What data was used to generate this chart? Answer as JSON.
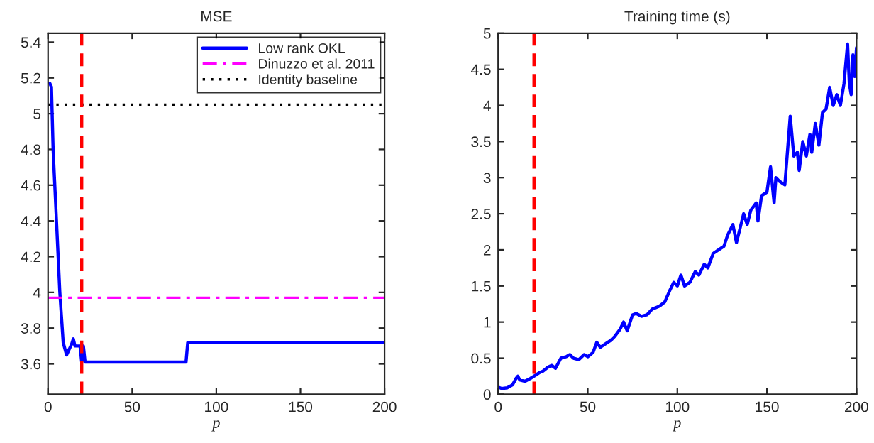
{
  "chart_data": [
    {
      "type": "line",
      "title": "MSE",
      "xlabel": "p",
      "xlim": [
        0,
        200
      ],
      "xticks": [
        0,
        50,
        100,
        150,
        200
      ],
      "ylim": [
        3.43,
        5.45
      ],
      "yticks": [
        3.6,
        3.8,
        4,
        4.2,
        4.4,
        4.6,
        4.8,
        5,
        5.2,
        5.4
      ],
      "grid": false,
      "legend": "top right",
      "marker": "none",
      "series": [
        {
          "name": "Low rank OKL",
          "color": "#0000ff",
          "line_style": "solid",
          "x": [
            1,
            2,
            3,
            5,
            7,
            9,
            11,
            13,
            14,
            15,
            16,
            19,
            20,
            21,
            22,
            82,
            83,
            200
          ],
          "values": [
            5.17,
            5.15,
            4.8,
            4.4,
            4.0,
            3.72,
            3.65,
            3.69,
            3.71,
            3.74,
            3.7,
            3.7,
            3.61,
            3.7,
            3.61,
            3.61,
            3.72,
            3.72
          ]
        },
        {
          "name": "Dinuzzo et al. 2011",
          "color": "#ff00ff",
          "line_style": "dashdot",
          "x": [
            0,
            200
          ],
          "values": [
            3.97,
            3.97
          ]
        },
        {
          "name": "Identity baseline",
          "color": "#000000",
          "line_style": "dotted",
          "x": [
            0,
            200
          ],
          "values": [
            5.05,
            5.05
          ]
        }
      ],
      "ref_lines": [
        {
          "axis": "x",
          "value": 20,
          "color": "#ff0000",
          "line_style": "dashed"
        }
      ]
    },
    {
      "type": "line",
      "title": "Training time (s)",
      "xlabel": "p",
      "xlim": [
        0,
        200
      ],
      "xticks": [
        0,
        50,
        100,
        150,
        200
      ],
      "ylim": [
        0,
        5
      ],
      "yticks": [
        0,
        0.5,
        1,
        1.5,
        2,
        2.5,
        3,
        3.5,
        4,
        4.5,
        5
      ],
      "grid": false,
      "legend": false,
      "marker": "none",
      "series": [
        {
          "color": "#0000ff",
          "line_style": "solid",
          "x": [
            0,
            2,
            5,
            8,
            10,
            11,
            12,
            15,
            18,
            20,
            23,
            25,
            28,
            30,
            32,
            35,
            38,
            40,
            42,
            45,
            48,
            50,
            53,
            55,
            57,
            60,
            63,
            65,
            68,
            70,
            72,
            75,
            77,
            80,
            83,
            86,
            90,
            93,
            96,
            98,
            100,
            102,
            104,
            107,
            110,
            112,
            115,
            117,
            120,
            123,
            126,
            128,
            131,
            133,
            135,
            137,
            139,
            141,
            144,
            145,
            147,
            150,
            152,
            154,
            155,
            157,
            160,
            163,
            165,
            167,
            168,
            170,
            172,
            174,
            175,
            177,
            179,
            181,
            183,
            185,
            187,
            189,
            191,
            193,
            195,
            196,
            197,
            198,
            199,
            200
          ],
          "values": [
            0.1,
            0.08,
            0.09,
            0.13,
            0.22,
            0.25,
            0.2,
            0.18,
            0.22,
            0.25,
            0.3,
            0.32,
            0.38,
            0.4,
            0.36,
            0.5,
            0.52,
            0.55,
            0.5,
            0.48,
            0.55,
            0.52,
            0.58,
            0.72,
            0.65,
            0.7,
            0.75,
            0.8,
            0.9,
            1.0,
            0.88,
            1.1,
            1.12,
            1.08,
            1.1,
            1.18,
            1.22,
            1.28,
            1.45,
            1.55,
            1.5,
            1.65,
            1.5,
            1.55,
            1.7,
            1.65,
            1.8,
            1.75,
            1.95,
            2.0,
            2.05,
            2.2,
            2.35,
            2.1,
            2.3,
            2.5,
            2.35,
            2.55,
            2.65,
            2.4,
            2.75,
            2.8,
            3.15,
            2.65,
            3.0,
            2.95,
            2.9,
            3.85,
            3.3,
            3.35,
            3.1,
            3.5,
            3.3,
            3.6,
            3.35,
            3.75,
            3.45,
            3.9,
            3.95,
            4.25,
            4.0,
            4.15,
            4.0,
            4.3,
            4.85,
            4.3,
            4.15,
            4.7,
            4.4,
            4.8
          ]
        }
      ],
      "ref_lines": [
        {
          "axis": "x",
          "value": 20,
          "color": "#ff0000",
          "line_style": "dashed"
        }
      ]
    }
  ]
}
